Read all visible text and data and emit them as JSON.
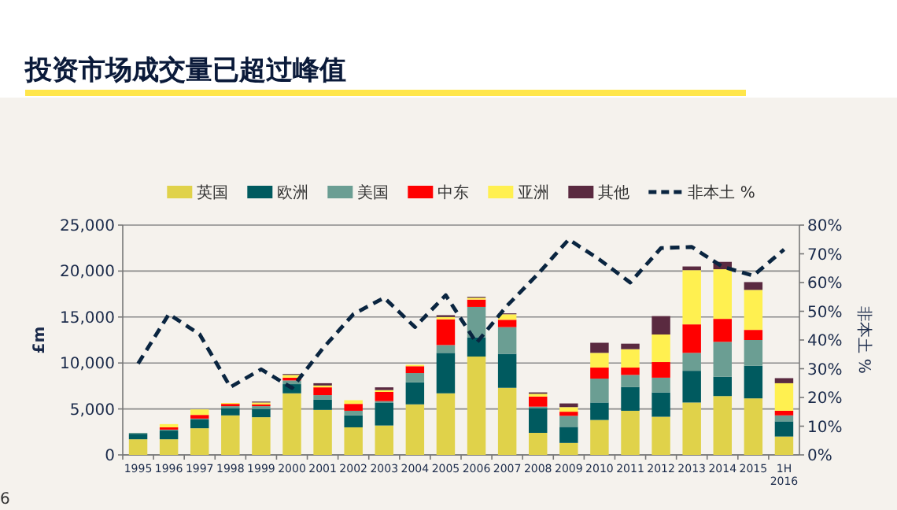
{
  "chart_data": {
    "type": "bar",
    "stacked": true,
    "title": "投资市场成交量已超过峰值",
    "ylabel": "£m",
    "y2label": "非本土 %",
    "annotations": [
      "6"
    ],
    "categories": [
      "1995",
      "1996",
      "1997",
      "1998",
      "1999",
      "2000",
      "2001",
      "2002",
      "2003",
      "2004",
      "2005",
      "2006",
      "2007",
      "2008",
      "2009",
      "2010",
      "2011",
      "2012",
      "2013",
      "2014",
      "2015",
      "1H 2016"
    ],
    "ylim": [
      0,
      25000
    ],
    "yticks": [
      {
        "value": 0,
        "label": "0"
      },
      {
        "value": 5000,
        "label": "5,000"
      },
      {
        "value": 10000,
        "label": "10,000"
      },
      {
        "value": 15000,
        "label": "15,000"
      },
      {
        "value": 20000,
        "label": "20,000"
      },
      {
        "value": 25000,
        "label": "25,000"
      }
    ],
    "y2lim": [
      0,
      80
    ],
    "y2ticks": [
      {
        "value": 0,
        "label": "0%"
      },
      {
        "value": 10,
        "label": "10%"
      },
      {
        "value": 20,
        "label": "20%"
      },
      {
        "value": 30,
        "label": "30%"
      },
      {
        "value": 40,
        "label": "40%"
      },
      {
        "value": 50,
        "label": "50%"
      },
      {
        "value": 60,
        "label": "60%"
      },
      {
        "value": 70,
        "label": "70%"
      },
      {
        "value": 80,
        "label": "80%"
      }
    ],
    "grid": "y",
    "legend": "top",
    "series": [
      {
        "name": "英国",
        "color": "#e0d24a",
        "values": [
          1700,
          1700,
          2900,
          4300,
          4100,
          6700,
          4900,
          3000,
          3200,
          5500,
          6700,
          10700,
          7300,
          2400,
          1300,
          3800,
          4800,
          4150,
          5700,
          6400,
          6150,
          2000
        ]
      },
      {
        "name": "欧洲",
        "color": "#005a5f",
        "values": [
          600,
          950,
          950,
          800,
          900,
          1000,
          1100,
          1300,
          2500,
          2400,
          4400,
          2100,
          3700,
          2700,
          1750,
          1900,
          2600,
          2650,
          3450,
          2100,
          3550,
          1650
        ]
      },
      {
        "name": "美国",
        "color": "#6b9e93",
        "values": [
          100,
          100,
          100,
          200,
          300,
          400,
          500,
          500,
          150,
          1000,
          850,
          3300,
          2900,
          150,
          1200,
          2600,
          1300,
          1600,
          1950,
          3800,
          2800,
          650
        ]
      },
      {
        "name": "中东",
        "color": "#ff0000",
        "values": [
          0,
          250,
          400,
          250,
          200,
          300,
          850,
          750,
          1000,
          750,
          2800,
          800,
          800,
          1100,
          450,
          1200,
          800,
          1700,
          3100,
          2500,
          1100,
          500
        ]
      },
      {
        "name": "亚洲",
        "color": "#fff050",
        "values": [
          0,
          350,
          600,
          100,
          200,
          300,
          200,
          400,
          200,
          150,
          250,
          200,
          600,
          300,
          500,
          1600,
          2000,
          3000,
          5900,
          5400,
          4350,
          3000
        ]
      },
      {
        "name": "其他",
        "color": "#5a2a40",
        "values": [
          0,
          0,
          0,
          0,
          100,
          100,
          250,
          0,
          300,
          0,
          200,
          100,
          100,
          150,
          400,
          1100,
          600,
          2000,
          400,
          800,
          850,
          550
        ]
      },
      {
        "name": "非本土 %",
        "color": "#0a2540",
        "type": "line",
        "axis": "y2",
        "line_style": "dashed",
        "marker": "none",
        "values": [
          31.8,
          49,
          42,
          23.6,
          29.8,
          23.3,
          37,
          49,
          54.7,
          44.5,
          55.6,
          39,
          52,
          63,
          75,
          68,
          60,
          72,
          72.4,
          65.5,
          62.4,
          71.5
        ]
      }
    ]
  }
}
